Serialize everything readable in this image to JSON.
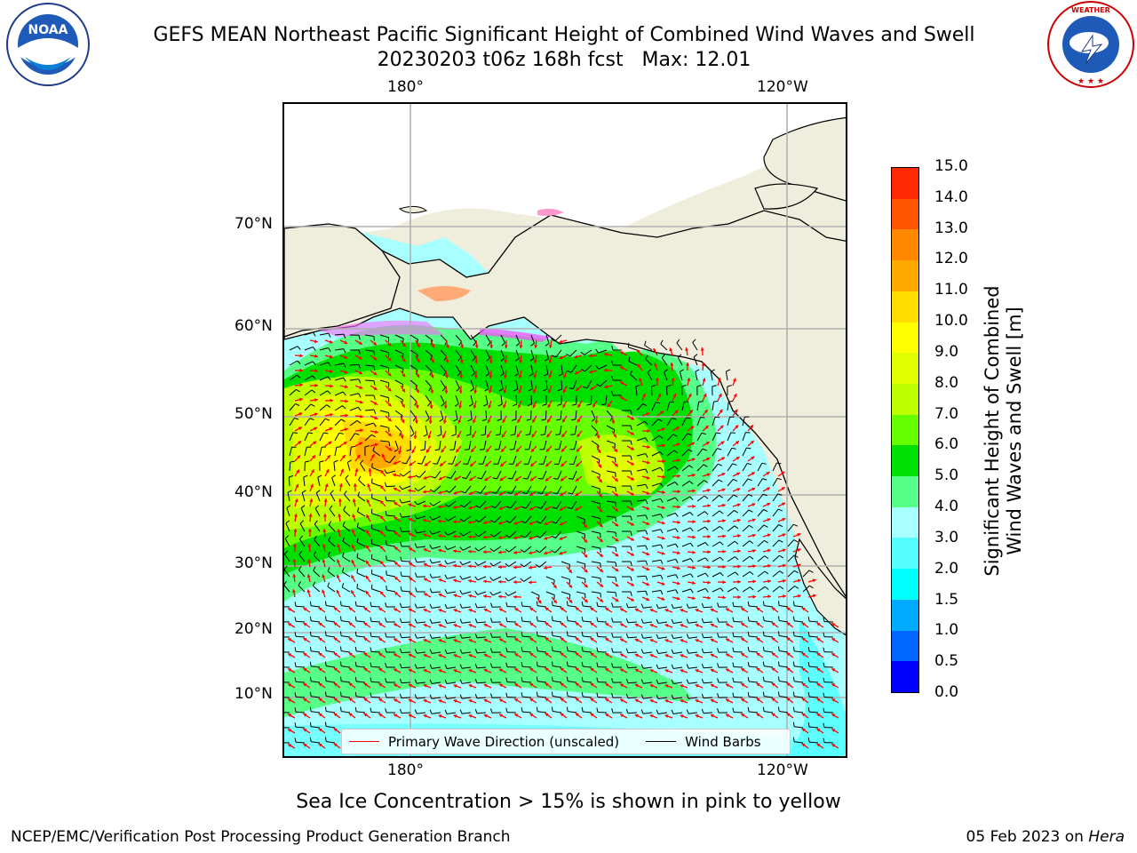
{
  "title": {
    "line1": "GEFS MEAN Northeast Pacific Significant Height of Combined Wind Waves and Swell",
    "line2": "20230203 t06z 168h fcst   Max: 12.01"
  },
  "logos": {
    "noaa": "NOAA",
    "noaa_ring": "NATIONAL OCEANIC AND ATMOSPHERIC ADMINISTRATION · U.S. DEPARTMENT OF COMMERCE",
    "nws_ring": "NATIONAL WEATHER SERVICE"
  },
  "axes": {
    "lon_top": [
      "180°",
      "120°W"
    ],
    "lon_bottom": [
      "180°",
      "120°W"
    ],
    "lat": [
      "70°N",
      "60°N",
      "50°N",
      "40°N",
      "30°N",
      "20°N",
      "10°N"
    ]
  },
  "colorbar": {
    "title_line1": "Significant Height of Combined",
    "title_line2": "Wind Waves and Swell [m]",
    "ticks": [
      "0.0",
      "0.5",
      "1.0",
      "1.5",
      "2.0",
      "3.0",
      "4.0",
      "5.0",
      "6.0",
      "7.0",
      "8.0",
      "9.0",
      "10.0",
      "11.0",
      "12.0",
      "13.0",
      "14.0",
      "15.0"
    ],
    "colors": [
      "#0000ff",
      "#0066ff",
      "#00aaff",
      "#00ffff",
      "#55ffff",
      "#a8ffff",
      "#55ff88",
      "#00e000",
      "#66ff00",
      "#bbff00",
      "#e0ff00",
      "#ffff00",
      "#ffdd00",
      "#ffaa00",
      "#ff8800",
      "#ff5500",
      "#ff2a00",
      "#ff0000"
    ]
  },
  "legend": {
    "wave_label": "Primary Wave Direction (unscaled)",
    "wave_color": "#ff0000",
    "wind_label": "Wind Barbs",
    "wind_color": "#000000"
  },
  "footer": {
    "ice_note": "Sea Ice Concentration > 15% is shown in pink to yellow",
    "left": "NCEP/EMC/Verification Post Processing Product Generation Branch",
    "date": "05 Feb 2023 on ",
    "host": "Hera"
  },
  "colors": {
    "land": "#efeddc",
    "grid": "#b0b0b0",
    "ocean_default": "#a8ffff"
  }
}
